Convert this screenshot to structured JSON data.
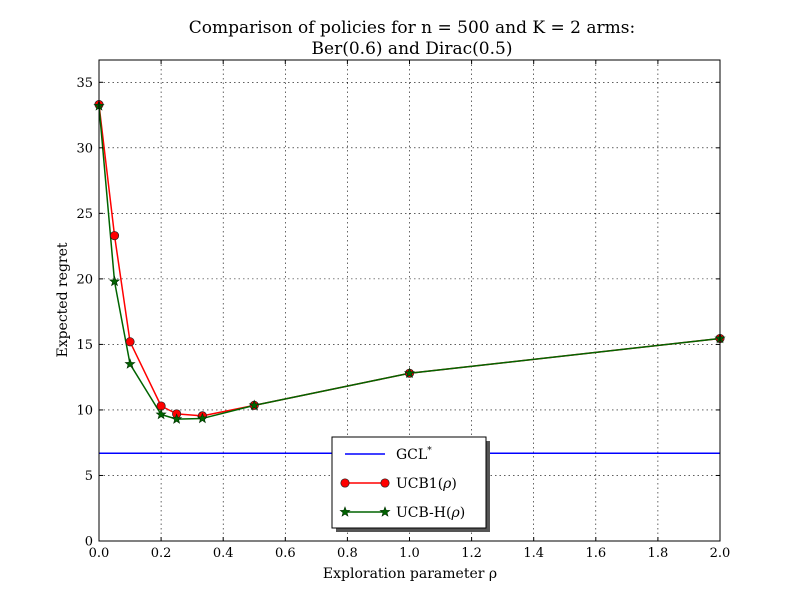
{
  "chart_data": {
    "type": "line",
    "title": "Comparison of policies for n = 500 and K = 2 arms:",
    "subtitle": "Ber(0.6) and Dirac(0.5)",
    "xlabel": "Exploration parameter ρ",
    "ylabel": "Expected regret",
    "xlim": [
      0.0,
      2.0
    ],
    "ylim": [
      0,
      36.7
    ],
    "xticks": [
      0.0,
      0.2,
      0.4,
      0.6,
      0.8,
      1.0,
      1.2,
      1.4,
      1.6,
      1.8,
      2.0
    ],
    "xtick_labels": [
      "0.0",
      "0.2",
      "0.4",
      "0.6",
      "0.8",
      "1.0",
      "1.2",
      "1.4",
      "1.6",
      "1.8",
      "2.0"
    ],
    "yticks": [
      0,
      5,
      10,
      15,
      20,
      25,
      30,
      35
    ],
    "ytick_labels": [
      "0",
      "5",
      "10",
      "15",
      "20",
      "25",
      "30",
      "35"
    ],
    "grid": true,
    "legend_position": "bottom-center",
    "series": [
      {
        "name": "GCL*",
        "legend_main": "GCL",
        "legend_sup": "*",
        "kind": "hline",
        "color": "#0000ff",
        "y": 6.7
      },
      {
        "name": "UCB1(ρ)",
        "legend_main": "UCB1(",
        "legend_rho": "ρ",
        "legend_close": ")",
        "kind": "line",
        "color": "#ff0000",
        "marker": "circle",
        "marker_fill": "#ff0000",
        "x": [
          0.0,
          0.05,
          0.1,
          0.2,
          0.25,
          0.333,
          0.5,
          1.0,
          2.0
        ],
        "y": [
          33.3,
          23.3,
          15.2,
          10.3,
          9.7,
          9.55,
          10.35,
          12.8,
          15.45
        ]
      },
      {
        "name": "UCB-H(ρ)",
        "legend_main": "UCB-H(",
        "legend_rho": "ρ",
        "legend_close": ")",
        "kind": "line",
        "color": "#006400",
        "marker": "star",
        "marker_fill": "#006400",
        "x": [
          0.0,
          0.05,
          0.1,
          0.2,
          0.25,
          0.333,
          0.5,
          1.0,
          2.0
        ],
        "y": [
          33.2,
          19.8,
          13.5,
          9.65,
          9.3,
          9.35,
          10.35,
          12.8,
          15.45
        ]
      }
    ]
  }
}
